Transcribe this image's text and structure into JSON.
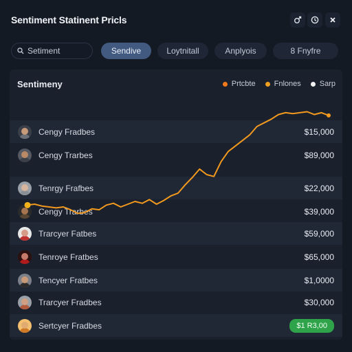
{
  "window": {
    "title": "Sentiment Statinent Pricls"
  },
  "toolbar": {
    "search_value": "Setiment",
    "tabs": [
      {
        "label": "Sendive",
        "active": true
      },
      {
        "label": "Loytnitall",
        "active": false
      },
      {
        "label": "Anplyois",
        "active": false
      },
      {
        "label": "8 Fnyfre",
        "active": false
      }
    ]
  },
  "panel": {
    "title": "Sentimeny",
    "legend": [
      {
        "label": "Prtcbte",
        "color": "#f07a1c"
      },
      {
        "label": "Fnlones",
        "color": "#f0a020"
      },
      {
        "label": "Sarp",
        "color": "#f2f2f2"
      }
    ],
    "rows": [
      {
        "name": "Cengy Fradbes",
        "value": "$15,000",
        "avatar_skin": "#c79a7a",
        "avatar_shirt": "#6b6f77",
        "avatar_bg": "#3a3f48"
      },
      {
        "name": "Cengy Trarbes",
        "value": "$89,000",
        "avatar_skin": "#b98a65",
        "avatar_shirt": "#3b3f47",
        "avatar_bg": "#545962"
      },
      {
        "name": "Tenrgy Frafbes",
        "value": "$22,000",
        "avatar_skin": "#d7b59d",
        "avatar_shirt": "#8b9097",
        "avatar_bg": "#9aa0a8"
      },
      {
        "name": "Cengy Trarbes",
        "value": "$39,000",
        "avatar_skin": "#a6744f",
        "avatar_shirt": "#5a4632",
        "avatar_bg": "#2b2b2b"
      },
      {
        "name": "Trarcyer Fatbes",
        "value": "$59,000",
        "avatar_skin": "#d89a88",
        "avatar_shirt": "#c03030",
        "avatar_bg": "#e8e8e8"
      },
      {
        "name": "Tenroye Fratbes",
        "value": "$65,000",
        "avatar_skin": "#c57a6a",
        "avatar_shirt": "#b01c1c",
        "avatar_bg": "#2a1010"
      },
      {
        "name": "Tencyer Fratbes",
        "value": "$1,0000",
        "avatar_skin": "#c99a78",
        "avatar_shirt": "#2c2c2c",
        "avatar_bg": "#7c8088"
      },
      {
        "name": "Trarcyer Fradbes",
        "value": "$30,000",
        "avatar_skin": "#cf9e83",
        "avatar_shirt": "#b45a3c",
        "avatar_bg": "#9aa0a8"
      },
      {
        "name": "Sertcyer Fradbes",
        "value": "$1 R3,00",
        "badge": true,
        "avatar_skin": "#e0aa70",
        "avatar_shirt": "#d07a28",
        "avatar_bg": "#f2c070"
      }
    ]
  },
  "chart_data": {
    "type": "line",
    "x": [
      0,
      1,
      2,
      3,
      4,
      5,
      6,
      7,
      8,
      9,
      10,
      11,
      12,
      13,
      14,
      15,
      16,
      17,
      18,
      19,
      20,
      21,
      22,
      23,
      24,
      25,
      26,
      27,
      28,
      29,
      30,
      31,
      32,
      33,
      34,
      35,
      36,
      37,
      38,
      39,
      40,
      41,
      42
    ],
    "series": [
      {
        "color": "#f39a1e",
        "values": [
          28,
          29,
          27,
          26,
          25,
          26,
          23,
          19,
          20,
          24,
          23,
          28,
          30,
          26,
          29,
          32,
          30,
          34,
          29,
          33,
          38,
          41,
          50,
          58,
          67,
          61,
          59,
          75,
          86,
          92,
          98,
          104,
          113,
          117,
          121,
          126,
          128,
          127,
          128,
          129,
          126,
          128,
          125
        ]
      }
    ],
    "ylim": [
      0,
      145
    ],
    "grid": false,
    "legend": "top-right"
  }
}
